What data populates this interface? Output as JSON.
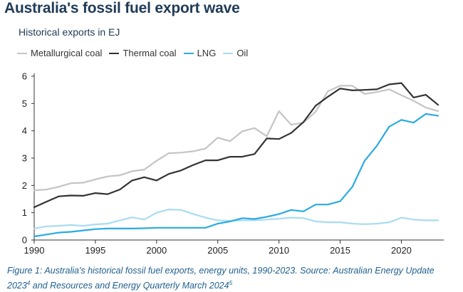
{
  "chart_data": {
    "type": "line",
    "title": "Australia's fossil fuel export wave",
    "subtitle": "Historical exports in EJ",
    "x": [
      1990,
      1991,
      1992,
      1993,
      1994,
      1995,
      1996,
      1997,
      1998,
      1999,
      2000,
      2001,
      2002,
      2003,
      2004,
      2005,
      2006,
      2007,
      2008,
      2009,
      2010,
      2011,
      2012,
      2013,
      2014,
      2015,
      2016,
      2017,
      2018,
      2019,
      2020,
      2021,
      2022,
      2023
    ],
    "series": [
      {
        "name": "Metallurgical coal",
        "color": "#c4c4c4",
        "values": [
          1.82,
          1.85,
          1.95,
          2.08,
          2.1,
          2.22,
          2.33,
          2.37,
          2.52,
          2.58,
          2.9,
          3.18,
          3.2,
          3.25,
          3.35,
          3.75,
          3.62,
          3.98,
          4.1,
          3.8,
          4.72,
          4.22,
          4.3,
          4.7,
          5.45,
          5.65,
          5.65,
          5.35,
          5.42,
          5.52,
          5.3,
          5.1,
          4.85,
          4.72
        ]
      },
      {
        "name": "Thermal coal",
        "color": "#333333",
        "values": [
          1.2,
          1.4,
          1.6,
          1.63,
          1.62,
          1.72,
          1.68,
          1.85,
          2.18,
          2.3,
          2.18,
          2.42,
          2.55,
          2.75,
          2.92,
          2.92,
          3.05,
          3.05,
          3.15,
          3.72,
          3.7,
          3.92,
          4.32,
          4.92,
          5.25,
          5.55,
          5.48,
          5.5,
          5.52,
          5.7,
          5.75,
          5.22,
          5.32,
          4.95
        ]
      },
      {
        "name": "LNG",
        "color": "#2aaae2",
        "values": [
          0.13,
          0.2,
          0.27,
          0.3,
          0.35,
          0.4,
          0.42,
          0.42,
          0.42,
          0.43,
          0.45,
          0.45,
          0.45,
          0.45,
          0.45,
          0.6,
          0.68,
          0.8,
          0.77,
          0.85,
          0.95,
          1.1,
          1.05,
          1.3,
          1.3,
          1.42,
          1.95,
          2.9,
          3.45,
          4.15,
          4.4,
          4.3,
          4.62,
          4.55
        ]
      },
      {
        "name": "Oil",
        "color": "#a9dcf1",
        "values": [
          0.42,
          0.5,
          0.52,
          0.55,
          0.52,
          0.57,
          0.6,
          0.72,
          0.83,
          0.75,
          1.0,
          1.12,
          1.1,
          0.95,
          0.82,
          0.72,
          0.7,
          0.72,
          0.72,
          0.75,
          0.78,
          0.82,
          0.8,
          0.68,
          0.65,
          0.65,
          0.6,
          0.58,
          0.6,
          0.65,
          0.82,
          0.75,
          0.72,
          0.72
        ]
      }
    ],
    "xticks": [
      "1990",
      "1995",
      "2000",
      "2005",
      "2010",
      "2015",
      "2020"
    ],
    "yticks": [
      "0",
      "1",
      "2",
      "3",
      "4",
      "5",
      "6"
    ],
    "xlim": [
      1990,
      2023
    ],
    "ylim": [
      0,
      6
    ],
    "grid": false,
    "legend_position": "top-left"
  },
  "caption": {
    "text": "Figure 1: Australia's historical fossil fuel exports, energy units, 1990-2023. Source: Australian Energy Update 2023",
    "ref1": "4",
    "text2": " and Resources and Energy Quarterly March 2024",
    "ref2": "5"
  }
}
